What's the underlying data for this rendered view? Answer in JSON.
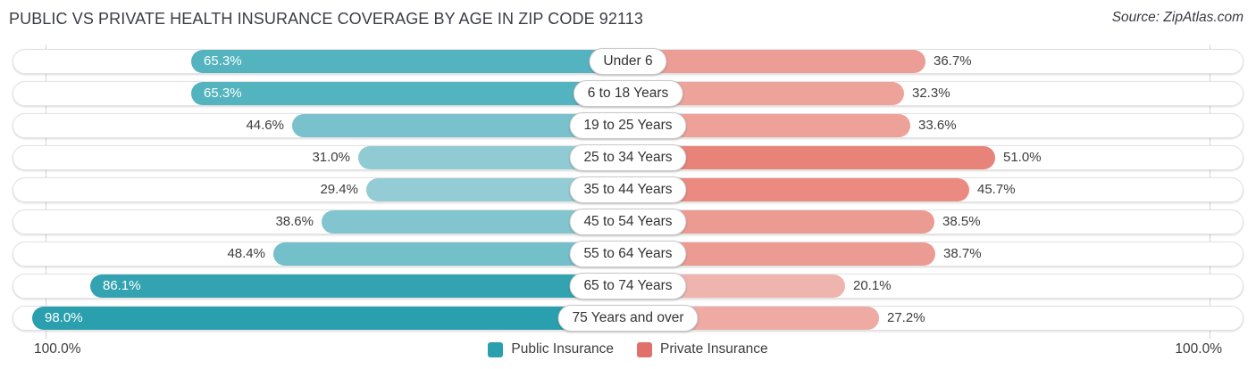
{
  "title": "PUBLIC VS PRIVATE HEALTH INSURANCE COVERAGE BY AGE IN ZIP CODE 92113",
  "source": "Source: ZipAtlas.com",
  "axis": {
    "left_label": "100.0%",
    "right_label": "100.0%"
  },
  "chart_data": {
    "type": "bar",
    "variant": "diverging-horizontal",
    "title": "Public vs Private Health Insurance Coverage by Age in Zip Code 92113",
    "x_range_percent": [
      0,
      100
    ],
    "grid": "100% end lines only",
    "legend_position": "bottom-center",
    "legend": [
      {
        "label": "Public Insurance",
        "color": "#2b9fae"
      },
      {
        "label": "Private Insurance",
        "color": "#e0716a"
      }
    ],
    "categories": [
      "Under 6",
      "6 to 18 Years",
      "19 to 25 Years",
      "25 to 34 Years",
      "35 to 44 Years",
      "45 to 54 Years",
      "55 to 64 Years",
      "65 to 74 Years",
      "75 Years and over"
    ],
    "series": [
      {
        "name": "Public Insurance",
        "values": [
          65.3,
          65.3,
          44.6,
          31.0,
          29.4,
          38.6,
          48.4,
          86.1,
          98.0
        ]
      },
      {
        "name": "Private Insurance",
        "values": [
          36.7,
          32.3,
          33.6,
          51.0,
          45.7,
          38.5,
          38.7,
          20.1,
          27.2
        ]
      }
    ],
    "rows": [
      {
        "category": "Under 6",
        "public": {
          "value": 65.3,
          "label": "65.3%",
          "color": "#53b3bf",
          "value_inside_bar": true
        },
        "private": {
          "value": 36.7,
          "label": "36.7%",
          "color": "#ec9d95"
        }
      },
      {
        "category": "6 to 18 Years",
        "public": {
          "value": 65.3,
          "label": "65.3%",
          "color": "#53b3bf",
          "value_inside_bar": true
        },
        "private": {
          "value": 32.3,
          "label": "32.3%",
          "color": "#eda29a"
        }
      },
      {
        "category": "19 to 25 Years",
        "public": {
          "value": 44.6,
          "label": "44.6%",
          "color": "#79c1cc",
          "value_inside_bar": false
        },
        "private": {
          "value": 33.6,
          "label": "33.6%",
          "color": "#eda199"
        }
      },
      {
        "category": "25 to 34 Years",
        "public": {
          "value": 31.0,
          "label": "31.0%",
          "color": "#90cbd4",
          "value_inside_bar": false
        },
        "private": {
          "value": 51.0,
          "label": "51.0%",
          "color": "#e88379"
        }
      },
      {
        "category": "35 to 44 Years",
        "public": {
          "value": 29.4,
          "label": "29.4%",
          "color": "#93ccd5",
          "value_inside_bar": false
        },
        "private": {
          "value": 45.7,
          "label": "45.7%",
          "color": "#ea8a81"
        }
      },
      {
        "category": "45 to 54 Years",
        "public": {
          "value": 38.6,
          "label": "38.6%",
          "color": "#83c5cf",
          "value_inside_bar": false
        },
        "private": {
          "value": 38.5,
          "label": "38.5%",
          "color": "#ec9b93"
        }
      },
      {
        "category": "55 to 64 Years",
        "public": {
          "value": 48.4,
          "label": "48.4%",
          "color": "#73bfca",
          "value_inside_bar": false
        },
        "private": {
          "value": 38.7,
          "label": "38.7%",
          "color": "#ec9b92"
        }
      },
      {
        "category": "65 to 74 Years",
        "public": {
          "value": 86.1,
          "label": "86.1%",
          "color": "#34a3b1",
          "value_inside_bar": true
        },
        "private": {
          "value": 20.1,
          "label": "20.1%",
          "color": "#f0b4ae"
        }
      },
      {
        "category": "75 Years and over",
        "public": {
          "value": 98.0,
          "label": "98.0%",
          "color": "#2a9fae",
          "value_inside_bar": true
        },
        "private": {
          "value": 27.2,
          "label": "27.2%",
          "color": "#eeaaa3"
        }
      }
    ]
  }
}
